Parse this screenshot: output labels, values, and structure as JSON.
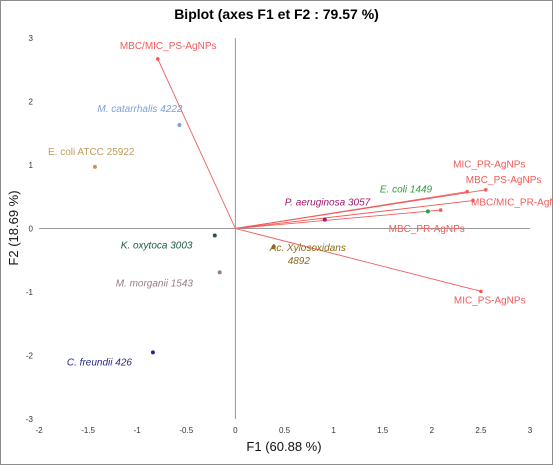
{
  "chart_data": {
    "type": "scatter",
    "title": "Biplot (axes F1 et F2 : 79.57 %)",
    "xlabel": "F1 (60.88 %)",
    "ylabel": "F2 (18.69 %)",
    "xlim": [
      -2,
      3
    ],
    "ylim": [
      -3,
      3
    ],
    "xticks": [
      "-2",
      "-1.5",
      "-1",
      "-0.5",
      "0",
      "0.5",
      "1",
      "1.5",
      "2",
      "2.5",
      "3"
    ],
    "yticks": [
      "-3",
      "-2",
      "-1",
      "0",
      "1",
      "2",
      "3"
    ],
    "grid": false,
    "observations": [
      {
        "label": "M. catarrhalis 4222",
        "x": -0.57,
        "y": 1.63,
        "italic": true,
        "color": "#7ea0d8"
      },
      {
        "label": "E. coli ATCC 25922",
        "x": -1.43,
        "y": 0.97,
        "italic": false,
        "color": "#c09a5b"
      },
      {
        "label": "P. aeruginosa 3057",
        "x": 0.91,
        "y": 0.14,
        "italic": true,
        "color": "#a0196b"
      },
      {
        "label": "E. coli 1449",
        "x": 1.96,
        "y": 0.27,
        "italic": true,
        "color": "#2e9e3e"
      },
      {
        "label": "K. oxytoca 3003",
        "x": -0.21,
        "y": -0.11,
        "italic": true,
        "color": "#1e5a40"
      },
      {
        "label": "Ac. Xylosoxidans 4892",
        "x": 0.39,
        "y": -0.29,
        "italic": true,
        "color": "#8c6a16"
      },
      {
        "label": "M. morganii 1543",
        "x": -0.16,
        "y": -0.69,
        "italic": true,
        "color": "#9b7c86"
      },
      {
        "label": "C. freundii 426",
        "x": -0.84,
        "y": -1.95,
        "italic": true,
        "color": "#262a8a"
      }
    ],
    "variables": [
      {
        "label": "MBC/MIC_PS-AgNPs",
        "x": -0.79,
        "y": 2.67
      },
      {
        "label": "MIC_PR-AgNPs",
        "x": 2.36,
        "y": 0.58
      },
      {
        "label": "MBC_PS-AgNPs",
        "x": 2.55,
        "y": 0.61
      },
      {
        "label": "MBC/MIC_PR-AgNPs",
        "x": 2.42,
        "y": 0.44
      },
      {
        "label": "MBC_PR-AgNPs",
        "x": 2.09,
        "y": 0.29
      },
      {
        "label": "MIC_PS-AgNPs",
        "x": 2.5,
        "y": -0.99
      }
    ],
    "variable_color": "#f25a5a"
  }
}
